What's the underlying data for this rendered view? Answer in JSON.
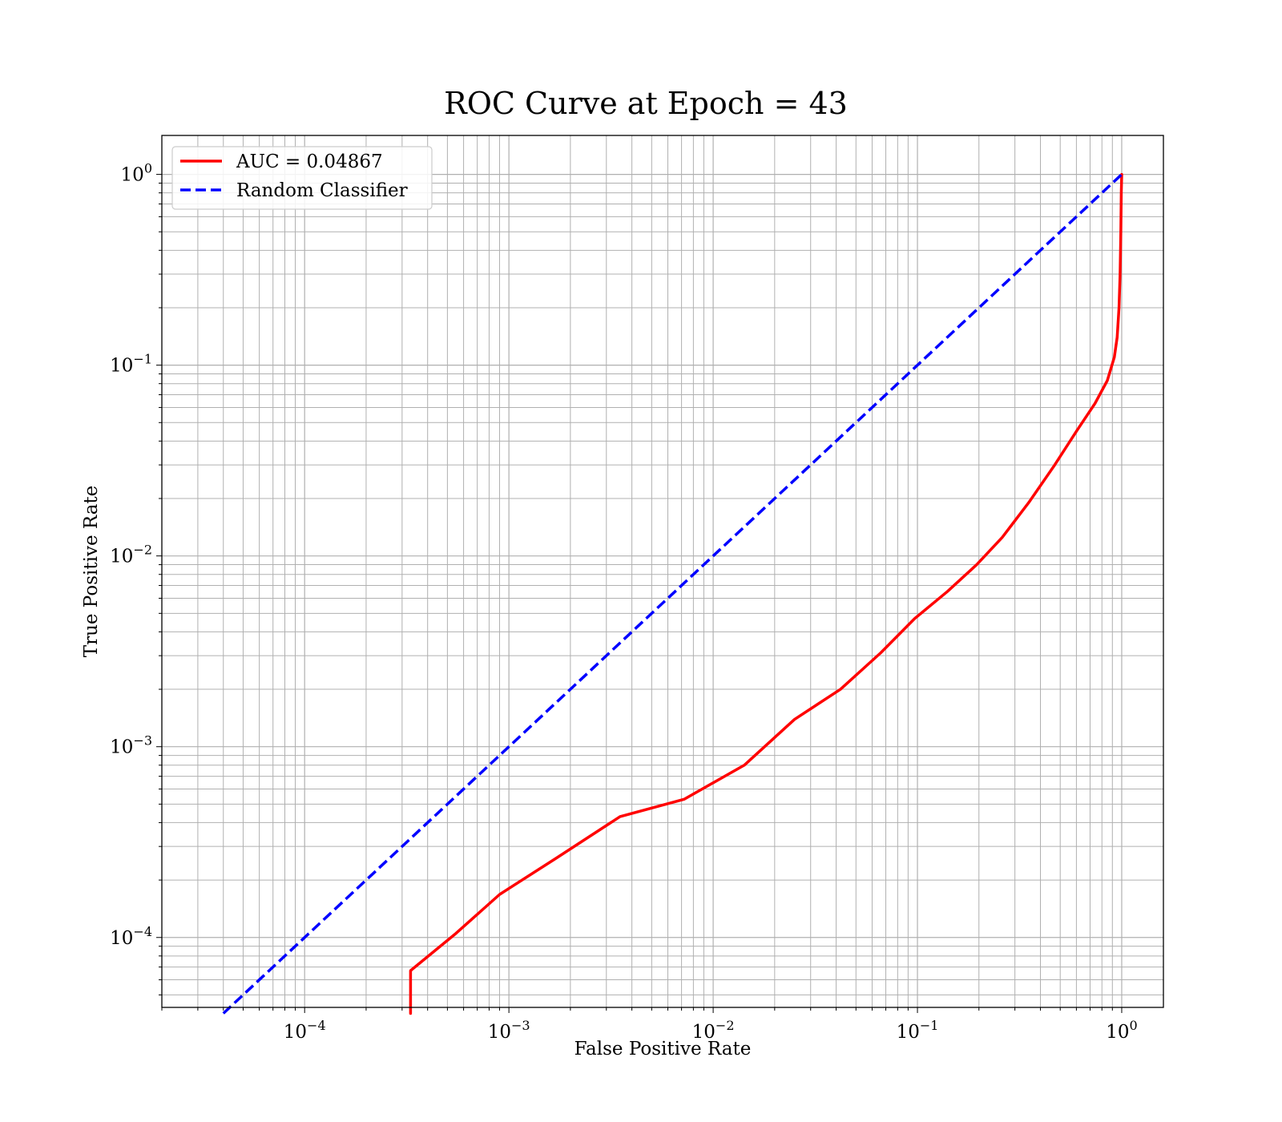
{
  "chart_data": {
    "type": "line",
    "title": "ROC Curve at Epoch = 43",
    "xlabel": "False Positive Rate",
    "ylabel": "True Positive Rate",
    "xscale": "log",
    "yscale": "log",
    "xlim": [
      2e-05,
      1.6
    ],
    "ylim": [
      4.3e-05,
      1.6
    ],
    "grid": "major and minor",
    "legend_position": "top-left",
    "x_ticks": [
      {
        "value": 0.0001,
        "base": "10",
        "exp": "−4"
      },
      {
        "value": 0.001,
        "base": "10",
        "exp": "−3"
      },
      {
        "value": 0.01,
        "base": "10",
        "exp": "−2"
      },
      {
        "value": 0.1,
        "base": "10",
        "exp": "−1"
      },
      {
        "value": 1,
        "base": "10",
        "exp": "0"
      }
    ],
    "y_ticks": [
      {
        "value": 0.0001,
        "base": "10",
        "exp": "−4"
      },
      {
        "value": 0.001,
        "base": "10",
        "exp": "−3"
      },
      {
        "value": 0.01,
        "base": "10",
        "exp": "−2"
      },
      {
        "value": 0.1,
        "base": "10",
        "exp": "−1"
      },
      {
        "value": 1,
        "base": "10",
        "exp": "0"
      }
    ],
    "series": [
      {
        "name": "AUC = 0.04867",
        "color": "#ff0000",
        "style": "solid",
        "points": [
          [
            0.00033,
            4e-05
          ],
          [
            0.00033,
            6.7e-05
          ],
          [
            0.00055,
            0.000105
          ],
          [
            0.0009,
            0.000168
          ],
          [
            0.0017,
            0.00026
          ],
          [
            0.0035,
            0.00043
          ],
          [
            0.0072,
            0.00053
          ],
          [
            0.0142,
            0.0008
          ],
          [
            0.025,
            0.00139
          ],
          [
            0.042,
            0.002
          ],
          [
            0.066,
            0.0031
          ],
          [
            0.097,
            0.0047
          ],
          [
            0.14,
            0.0065
          ],
          [
            0.195,
            0.009
          ],
          [
            0.26,
            0.0125
          ],
          [
            0.35,
            0.019
          ],
          [
            0.47,
            0.03
          ],
          [
            0.6,
            0.045
          ],
          [
            0.74,
            0.063
          ],
          [
            0.85,
            0.083
          ],
          [
            0.92,
            0.11
          ],
          [
            0.95,
            0.14
          ],
          [
            0.97,
            0.2
          ],
          [
            0.982,
            0.3
          ],
          [
            0.99,
            0.5
          ],
          [
            0.995,
            0.8
          ],
          [
            1.0,
            1.0
          ]
        ]
      },
      {
        "name": "Random Classifier",
        "color": "#0000ff",
        "style": "dashed",
        "points": [
          [
            4e-05,
            4e-05
          ],
          [
            1.0,
            1.0
          ]
        ]
      }
    ]
  }
}
